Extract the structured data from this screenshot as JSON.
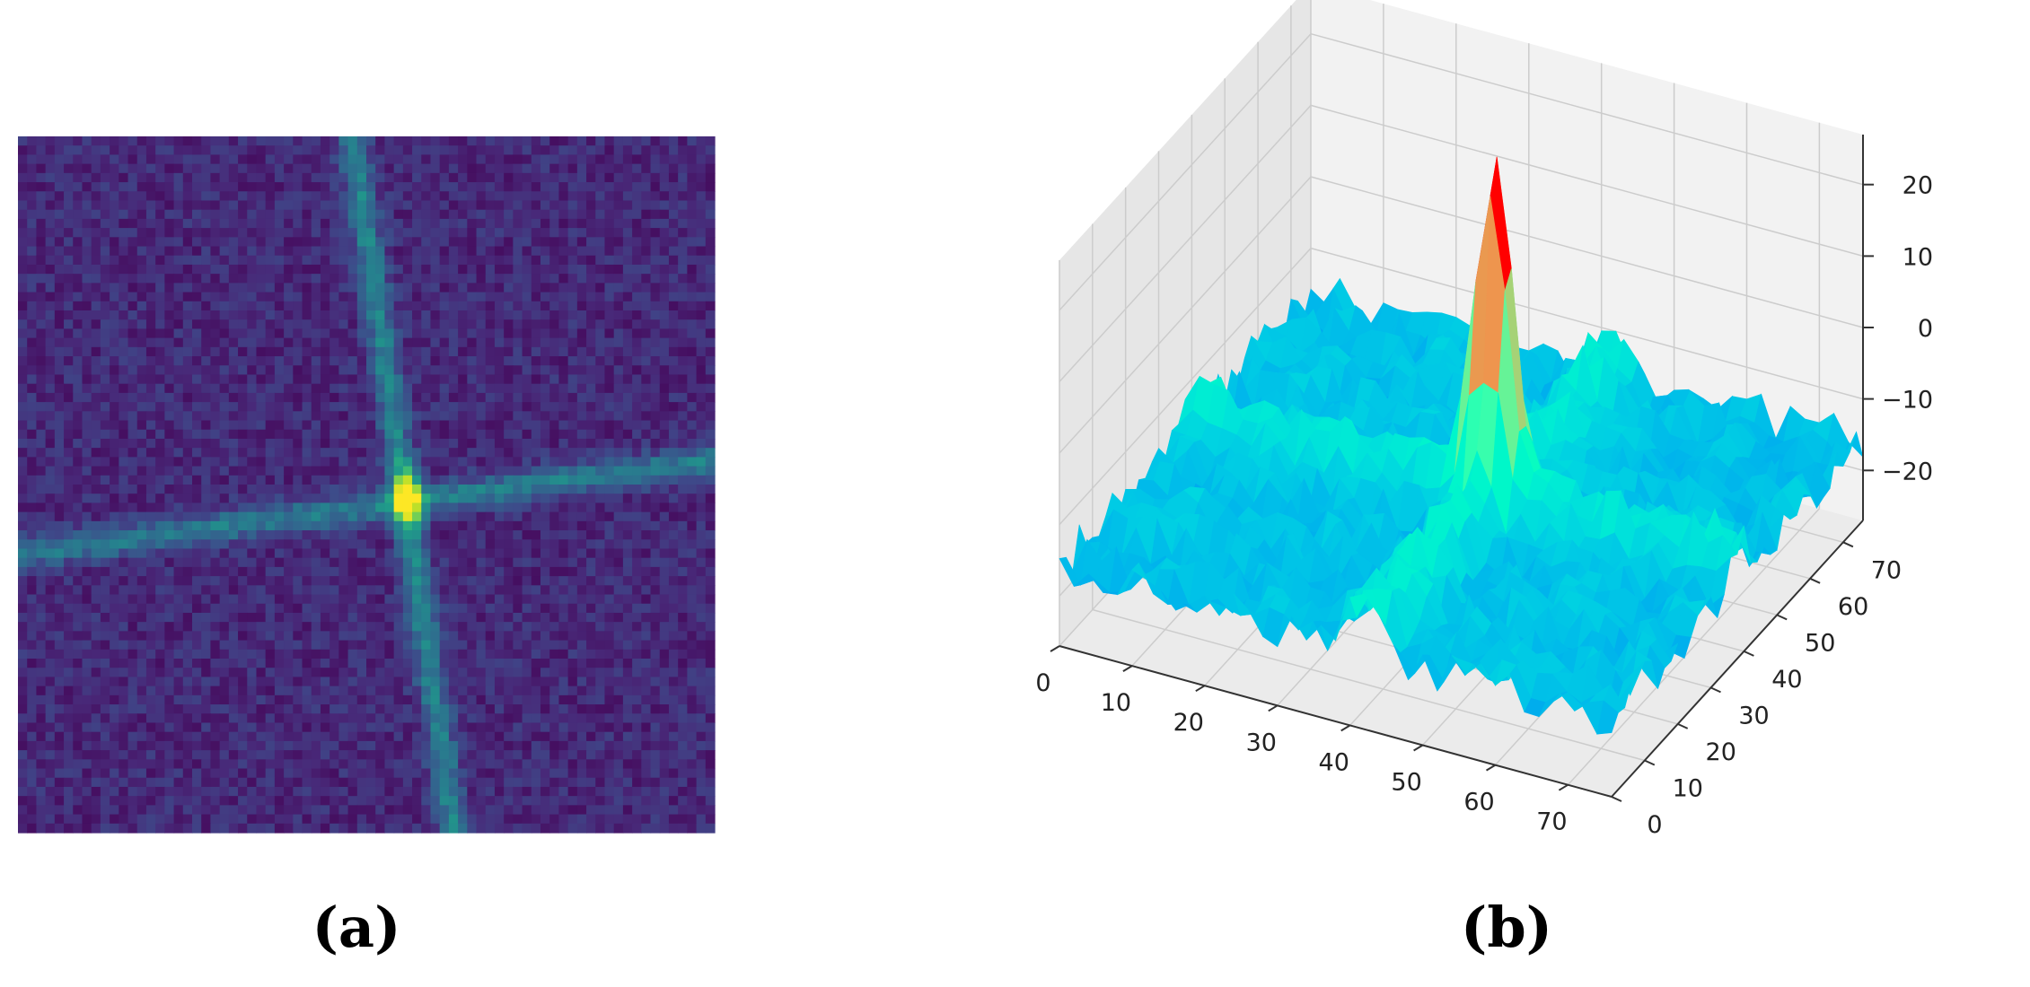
{
  "chart_data": [
    {
      "type": "heatmap",
      "panel_label": "(a)",
      "grid_size": [
        76,
        76
      ],
      "colormap": "viridis",
      "value_range": [
        0,
        1
      ],
      "features": {
        "peak_cell": {
          "x": 42,
          "y": 39,
          "value": 1.0
        },
        "vertical_streak": {
          "x_start": 36,
          "x_end": 47,
          "y_start": 0,
          "y_end": 75,
          "intensity": 0.33
        },
        "horizontal_streak": {
          "x_start": 0,
          "x_end": 75,
          "y_start": 45,
          "y_end": 35,
          "intensity": 0.3
        },
        "background_level": 0.12
      },
      "axes_visible": false
    },
    {
      "type": "surface",
      "panel_label": "(b)",
      "colormap": "rainbow",
      "x_ticks": [
        "0",
        "10",
        "20",
        "30",
        "40",
        "50",
        "60",
        "70"
      ],
      "y_ticks": [
        "0",
        "10",
        "20",
        "30",
        "40",
        "50",
        "60",
        "70"
      ],
      "z_ticks": [
        "20",
        "10",
        "0",
        "−10",
        "−20"
      ],
      "xlim": [
        0,
        76
      ],
      "ylim": [
        0,
        76
      ],
      "zlim": [
        -27,
        27
      ],
      "peak": {
        "x": 42,
        "y": 39,
        "z": 23
      },
      "floor_level": -16,
      "ridge_level": -9,
      "grid": true
    }
  ],
  "colors": {
    "viridis": [
      "#440154",
      "#482878",
      "#3e4989",
      "#31688e",
      "#26828e",
      "#1f9e89",
      "#35b779",
      "#6ece58",
      "#b5de2b",
      "#fde725"
    ],
    "pane_back": "#f2f2f2",
    "pane_side": "#e6e6e6",
    "pane_floor": "#ebebeb",
    "grid": "#cccccc",
    "axis": "#333333",
    "background": "#ffffff"
  }
}
